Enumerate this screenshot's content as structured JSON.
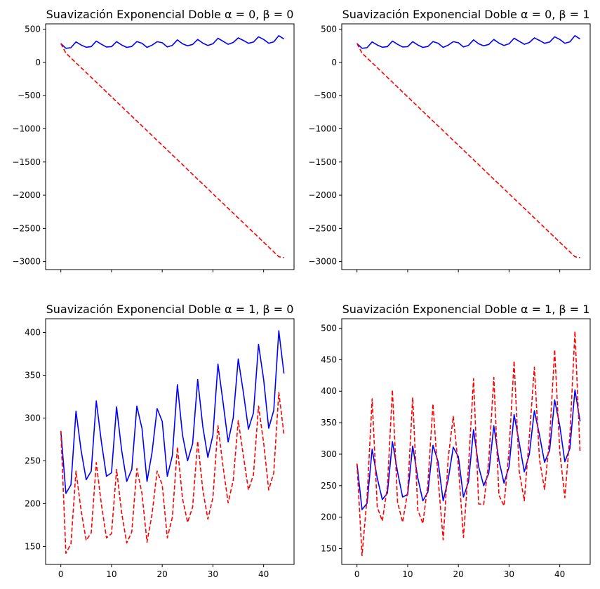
{
  "chart_data": [
    {
      "type": "line",
      "title": "Suavización Exponencial Doble α = 0, β = 0",
      "xlim": [
        -3,
        46
      ],
      "ylim": [
        -3120,
        580
      ],
      "xticks": [
        0,
        10,
        20,
        30,
        40
      ],
      "yticks": [
        500,
        0,
        -500,
        -1000,
        -1500,
        -2000,
        -2500,
        -3000
      ],
      "xticklabels_visible": false,
      "series": [
        {
          "color": "#0000ff",
          "style": "solid",
          "x": [
            0,
            1,
            2,
            3,
            4,
            5,
            6,
            7,
            8,
            9,
            10,
            11,
            12,
            13,
            14,
            15,
            16,
            17,
            18,
            19,
            20,
            21,
            22,
            23,
            24,
            25,
            26,
            27,
            28,
            29,
            30,
            31,
            32,
            33,
            34,
            35,
            36,
            37,
            38,
            39,
            40,
            41,
            42,
            43,
            44
          ],
          "values": [
            285,
            212,
            222,
            308,
            262,
            228,
            238,
            320,
            272,
            232,
            236,
            313,
            262,
            226,
            240,
            314,
            288,
            226,
            260,
            311,
            296,
            232,
            256,
            339,
            280,
            250,
            270,
            345,
            290,
            254,
            280,
            363,
            318,
            272,
            300,
            369,
            330,
            287,
            306,
            386,
            345,
            288,
            309,
            402,
            352
          ]
        },
        {
          "color": "#ff0000",
          "style": "dashed",
          "x": [
            0,
            1,
            2,
            3,
            4,
            5,
            6,
            7,
            8,
            9,
            10,
            11,
            12,
            13,
            14,
            15,
            16,
            17,
            18,
            19,
            20,
            21,
            22,
            23,
            24,
            25,
            26,
            27,
            28,
            29,
            30,
            31,
            32,
            33,
            34,
            35,
            36,
            37,
            38,
            39,
            40,
            41,
            42,
            43,
            44
          ],
          "values": [
            285,
            139,
            66,
            -7,
            -80,
            -153,
            -226,
            -299,
            -372,
            -445,
            -518,
            -591,
            -664,
            -737,
            -810,
            -883,
            -956,
            -1029,
            -1102,
            -1175,
            -1248,
            -1321,
            -1394,
            -1467,
            -1540,
            -1613,
            -1686,
            -1759,
            -1832,
            -1905,
            -1978,
            -2051,
            -2124,
            -2197,
            -2270,
            -2343,
            -2416,
            -2489,
            -2562,
            -2635,
            -2708,
            -2781,
            -2854,
            -2927,
            -2940
          ]
        }
      ]
    },
    {
      "type": "line",
      "title": "Suavización Exponencial Doble α = 0, β = 1",
      "xlim": [
        -3,
        46
      ],
      "ylim": [
        -3120,
        580
      ],
      "xticks": [
        0,
        10,
        20,
        30,
        40
      ],
      "yticks": [
        500,
        0,
        -500,
        -1000,
        -1500,
        -2000,
        -2500,
        -3000
      ],
      "xticklabels_visible": false,
      "series": [
        {
          "color": "#0000ff",
          "style": "solid",
          "x": [
            0,
            1,
            2,
            3,
            4,
            5,
            6,
            7,
            8,
            9,
            10,
            11,
            12,
            13,
            14,
            15,
            16,
            17,
            18,
            19,
            20,
            21,
            22,
            23,
            24,
            25,
            26,
            27,
            28,
            29,
            30,
            31,
            32,
            33,
            34,
            35,
            36,
            37,
            38,
            39,
            40,
            41,
            42,
            43,
            44
          ],
          "values": [
            285,
            212,
            222,
            308,
            262,
            228,
            238,
            320,
            272,
            232,
            236,
            313,
            262,
            226,
            240,
            314,
            288,
            226,
            260,
            311,
            296,
            232,
            256,
            339,
            280,
            250,
            270,
            345,
            290,
            254,
            280,
            363,
            318,
            272,
            300,
            369,
            330,
            287,
            306,
            386,
            345,
            288,
            309,
            402,
            352
          ]
        },
        {
          "color": "#ff0000",
          "style": "dashed",
          "x": [
            0,
            1,
            2,
            3,
            4,
            5,
            6,
            7,
            8,
            9,
            10,
            11,
            12,
            13,
            14,
            15,
            16,
            17,
            18,
            19,
            20,
            21,
            22,
            23,
            24,
            25,
            26,
            27,
            28,
            29,
            30,
            31,
            32,
            33,
            34,
            35,
            36,
            37,
            38,
            39,
            40,
            41,
            42,
            43,
            44
          ],
          "values": [
            285,
            139,
            66,
            -7,
            -80,
            -153,
            -226,
            -299,
            -372,
            -445,
            -518,
            -591,
            -664,
            -737,
            -810,
            -883,
            -956,
            -1029,
            -1102,
            -1175,
            -1248,
            -1321,
            -1394,
            -1467,
            -1540,
            -1613,
            -1686,
            -1759,
            -1832,
            -1905,
            -1978,
            -2051,
            -2124,
            -2197,
            -2270,
            -2343,
            -2416,
            -2489,
            -2562,
            -2635,
            -2708,
            -2781,
            -2854,
            -2927,
            -2940
          ]
        }
      ]
    },
    {
      "type": "line",
      "title": "Suavización Exponencial Doble α = 1, β = 0",
      "xlim": [
        -3,
        46
      ],
      "ylim": [
        129,
        416
      ],
      "xticks": [
        0,
        10,
        20,
        30,
        40
      ],
      "yticks": [
        400,
        350,
        300,
        250,
        200,
        150
      ],
      "xticklabels_visible": true,
      "series": [
        {
          "color": "#0000ff",
          "style": "solid",
          "x": [
            0,
            1,
            2,
            3,
            4,
            5,
            6,
            7,
            8,
            9,
            10,
            11,
            12,
            13,
            14,
            15,
            16,
            17,
            18,
            19,
            20,
            21,
            22,
            23,
            24,
            25,
            26,
            27,
            28,
            29,
            30,
            31,
            32,
            33,
            34,
            35,
            36,
            37,
            38,
            39,
            40,
            41,
            42,
            43,
            44
          ],
          "values": [
            285,
            212,
            222,
            308,
            262,
            228,
            238,
            320,
            272,
            232,
            236,
            313,
            262,
            226,
            240,
            314,
            288,
            226,
            260,
            311,
            296,
            232,
            256,
            339,
            280,
            250,
            270,
            345,
            290,
            254,
            280,
            363,
            318,
            272,
            300,
            369,
            330,
            287,
            306,
            386,
            345,
            288,
            309,
            402,
            352
          ]
        },
        {
          "color": "#ff0000",
          "style": "dashed",
          "x": [
            0,
            1,
            2,
            3,
            4,
            5,
            6,
            7,
            8,
            9,
            10,
            11,
            12,
            13,
            14,
            15,
            16,
            17,
            18,
            19,
            20,
            21,
            22,
            23,
            24,
            25,
            26,
            27,
            28,
            29,
            30,
            31,
            32,
            33,
            34,
            35,
            36,
            37,
            38,
            39,
            40,
            41,
            42,
            43,
            44
          ],
          "values": [
            285,
            142,
            153,
            238,
            192,
            157,
            166,
            248,
            199,
            160,
            165,
            240,
            189,
            154,
            167,
            241,
            212,
            155,
            188,
            238,
            222,
            160,
            184,
            266,
            206,
            178,
            196,
            273,
            216,
            182,
            207,
            291,
            243,
            201,
            227,
            297,
            256,
            216,
            234,
            314,
            271,
            216,
            236,
            330,
            281
          ]
        }
      ]
    },
    {
      "type": "line",
      "title": "Suavización Exponencial Doble α = 1, β = 1",
      "xlim": [
        -3,
        46
      ],
      "ylim": [
        125,
        515
      ],
      "xticks": [
        0,
        10,
        20,
        30,
        40
      ],
      "yticks": [
        500,
        450,
        400,
        350,
        300,
        250,
        200,
        150
      ],
      "xticklabels_visible": true,
      "series": [
        {
          "color": "#0000ff",
          "style": "solid",
          "x": [
            0,
            1,
            2,
            3,
            4,
            5,
            6,
            7,
            8,
            9,
            10,
            11,
            12,
            13,
            14,
            15,
            16,
            17,
            18,
            19,
            20,
            21,
            22,
            23,
            24,
            25,
            26,
            27,
            28,
            29,
            30,
            31,
            32,
            33,
            34,
            35,
            36,
            37,
            38,
            39,
            40,
            41,
            42,
            43,
            44
          ],
          "values": [
            285,
            212,
            222,
            308,
            262,
            228,
            238,
            320,
            272,
            232,
            236,
            313,
            262,
            226,
            240,
            314,
            288,
            226,
            260,
            311,
            296,
            232,
            256,
            339,
            280,
            250,
            270,
            345,
            290,
            254,
            280,
            363,
            318,
            272,
            300,
            369,
            330,
            287,
            306,
            386,
            345,
            288,
            309,
            402,
            352
          ]
        },
        {
          "color": "#ff0000",
          "style": "dashed",
          "x": [
            0,
            1,
            2,
            3,
            4,
            5,
            6,
            7,
            8,
            9,
            10,
            11,
            12,
            13,
            14,
            15,
            16,
            17,
            18,
            19,
            20,
            21,
            22,
            23,
            24,
            25,
            26,
            27,
            28,
            29,
            30,
            31,
            32,
            33,
            34,
            35,
            36,
            37,
            38,
            39,
            40,
            41,
            42,
            43,
            44
          ],
          "values": [
            285,
            139,
            232,
            388,
            216,
            194,
            248,
            402,
            224,
            192,
            240,
            390,
            211,
            190,
            254,
            380,
            262,
            164,
            294,
            360,
            281,
            168,
            280,
            420,
            221,
            220,
            290,
            422,
            235,
            218,
            306,
            448,
            273,
            226,
            328,
            438,
            291,
            244,
            325,
            466,
            304,
            231,
            330,
            495,
            302
          ]
        }
      ]
    }
  ]
}
